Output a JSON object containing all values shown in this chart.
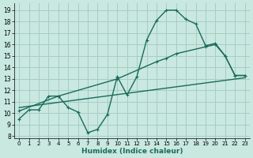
{
  "xlabel": "Humidex (Indice chaleur)",
  "bg_color": "#c8e8e0",
  "grid_color": "#a8ccc4",
  "line_color": "#1a6b5a",
  "x_ticks": [
    0,
    1,
    2,
    3,
    4,
    5,
    6,
    7,
    8,
    9,
    10,
    11,
    12,
    13,
    14,
    15,
    16,
    17,
    18,
    19,
    20,
    21,
    22,
    23
  ],
  "y_ticks": [
    8,
    9,
    10,
    11,
    12,
    13,
    14,
    15,
    16,
    17,
    18,
    19
  ],
  "ylim": [
    7.8,
    19.6
  ],
  "xlim": [
    -0.5,
    23.5
  ],
  "series1_x": [
    0,
    1,
    2,
    3,
    4,
    5,
    6,
    7,
    8,
    9,
    10,
    11,
    12,
    13,
    14,
    15,
    16,
    17,
    18,
    19,
    20,
    21,
    22,
    23
  ],
  "series1_y": [
    9.5,
    10.3,
    10.3,
    11.5,
    11.5,
    10.5,
    10.1,
    8.3,
    8.6,
    9.9,
    13.2,
    11.6,
    13.2,
    16.4,
    18.1,
    19.0,
    19.0,
    18.2,
    17.8,
    15.9,
    16.1,
    15.0,
    13.3,
    13.3
  ],
  "series2_x": [
    0,
    4,
    10,
    14,
    15,
    16,
    19,
    20,
    21,
    22,
    23
  ],
  "series2_y": [
    10.2,
    11.5,
    13.0,
    14.5,
    14.8,
    15.2,
    15.8,
    16.0,
    15.0,
    13.3,
    13.3
  ],
  "series3_x": [
    0,
    23
  ],
  "series3_y": [
    10.5,
    13.1
  ],
  "marker_size": 3.5,
  "linewidth": 1.0
}
